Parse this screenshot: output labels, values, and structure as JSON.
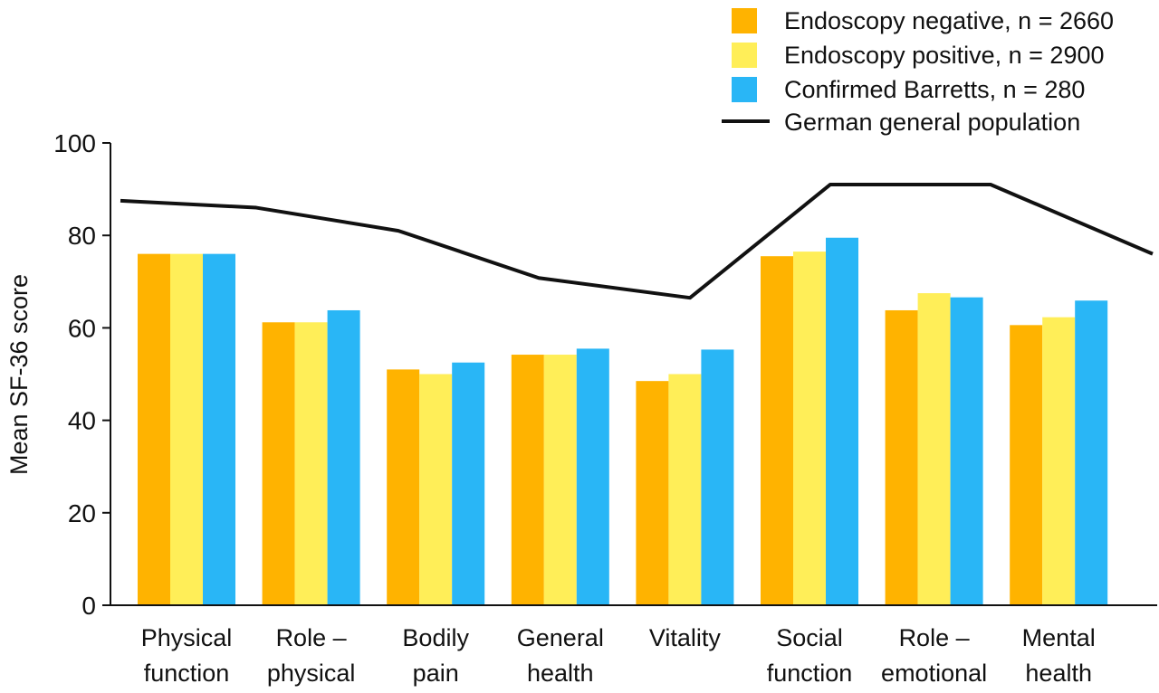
{
  "chart_data": {
    "type": "bar",
    "ylabel": "Mean SF-36 score",
    "ylim": [
      0,
      100
    ],
    "yticks": [
      "0",
      "20",
      "40",
      "60",
      "80",
      "100"
    ],
    "categories": [
      [
        "Physical",
        "function"
      ],
      [
        "Role –",
        "physical"
      ],
      [
        "Bodily",
        "pain"
      ],
      [
        "General",
        "health"
      ],
      [
        "Vitality"
      ],
      [
        "Social",
        "function"
      ],
      [
        "Role –",
        "emotional"
      ],
      [
        "Mental",
        "health"
      ]
    ],
    "series": [
      {
        "name": "Endoscopy negative, n = 2660",
        "color": "#FFB300",
        "values": [
          76,
          61.2,
          51,
          54.2,
          48.5,
          75.5,
          63.8,
          60.6
        ]
      },
      {
        "name": "Endoscopy positive, n = 2900",
        "color": "#FFEE58",
        "values": [
          76,
          61.2,
          50,
          54.2,
          50,
          76.5,
          67.5,
          62.3
        ]
      },
      {
        "name": "Confirmed Barretts, n = 280",
        "color": "#29B6F6",
        "values": [
          76,
          63.8,
          52.5,
          55.5,
          55.3,
          79.5,
          66.6,
          65.9
        ]
      }
    ],
    "line": {
      "name": "German general population",
      "color": "#111111",
      "values": [
        87.5,
        86,
        81,
        70.8,
        66.5,
        91,
        91,
        76
      ]
    },
    "grid": false,
    "legend_position": "top-right"
  }
}
